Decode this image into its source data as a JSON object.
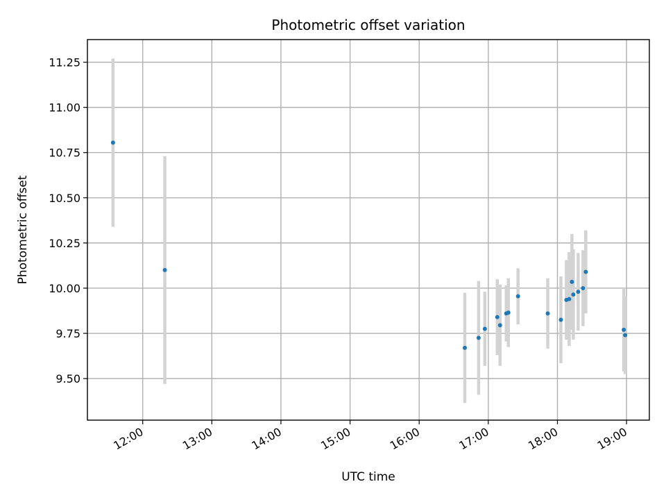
{
  "chart_data": {
    "type": "scatter",
    "title": "Photometric offset variation",
    "xlabel": "UTC time",
    "ylabel": "Photometric offset",
    "x_unit": "hours UTC",
    "xlim": [
      11.2,
      19.33
    ],
    "ylim": [
      9.27,
      11.375
    ],
    "x_ticks": [
      {
        "value": 12,
        "label": "12:00"
      },
      {
        "value": 13,
        "label": "13:00"
      },
      {
        "value": 14,
        "label": "14:00"
      },
      {
        "value": 15,
        "label": "15:00"
      },
      {
        "value": 16,
        "label": "16:00"
      },
      {
        "value": 17,
        "label": "17:00"
      },
      {
        "value": 18,
        "label": "18:00"
      },
      {
        "value": 19,
        "label": "19:00"
      }
    ],
    "y_ticks": [
      {
        "value": 9.5,
        "label": "9.50"
      },
      {
        "value": 9.75,
        "label": "9.75"
      },
      {
        "value": 10.0,
        "label": "10.00"
      },
      {
        "value": 10.25,
        "label": "10.25"
      },
      {
        "value": 10.5,
        "label": "10.50"
      },
      {
        "value": 10.75,
        "label": "10.75"
      },
      {
        "value": 11.0,
        "label": "11.00"
      },
      {
        "value": 11.25,
        "label": "11.25"
      }
    ],
    "grid": true,
    "marker_color": "#1f77b4",
    "errorbar_color": "#d3d3d3",
    "series": [
      {
        "points": [
          {
            "x": 11.57,
            "y": 10.805,
            "err": 0.465
          },
          {
            "x": 12.32,
            "y": 10.1,
            "err": 0.63
          },
          {
            "x": 16.66,
            "y": 9.67,
            "err": 0.305
          },
          {
            "x": 16.86,
            "y": 9.725,
            "err": 0.315
          },
          {
            "x": 16.95,
            "y": 9.775,
            "err": 0.205
          },
          {
            "x": 17.13,
            "y": 9.84,
            "err": 0.21
          },
          {
            "x": 17.17,
            "y": 9.795,
            "err": 0.225
          },
          {
            "x": 17.26,
            "y": 9.86,
            "err": 0.155
          },
          {
            "x": 17.29,
            "y": 9.865,
            "err": 0.19
          },
          {
            "x": 17.43,
            "y": 9.955,
            "err": 0.155
          },
          {
            "x": 17.86,
            "y": 9.86,
            "err": 0.195
          },
          {
            "x": 18.05,
            "y": 9.825,
            "err": 0.24
          },
          {
            "x": 18.13,
            "y": 9.935,
            "err": 0.22
          },
          {
            "x": 18.17,
            "y": 9.94,
            "err": 0.26
          },
          {
            "x": 18.21,
            "y": 10.035,
            "err": 0.265
          },
          {
            "x": 18.23,
            "y": 9.965,
            "err": 0.25
          },
          {
            "x": 18.3,
            "y": 9.98,
            "err": 0.215
          },
          {
            "x": 18.37,
            "y": 10.0,
            "err": 0.21
          },
          {
            "x": 18.41,
            "y": 10.09,
            "err": 0.23
          },
          {
            "x": 18.96,
            "y": 9.77,
            "err": 0.23
          },
          {
            "x": 18.98,
            "y": 9.74,
            "err": 0.215
          }
        ]
      }
    ]
  }
}
